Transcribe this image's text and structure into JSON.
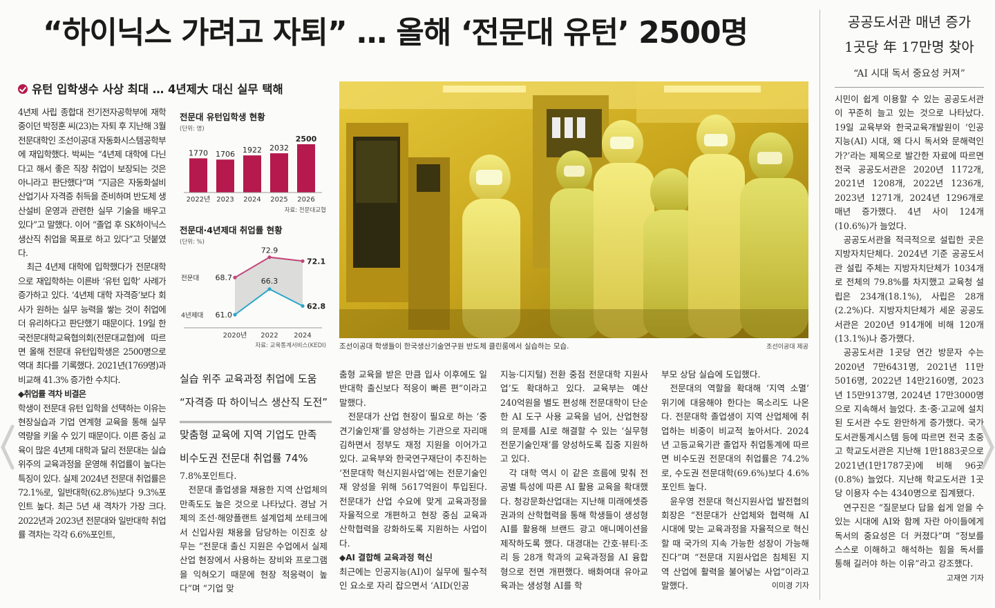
{
  "headline": "“하이닉스 가려고 자퇴” … 올해 ‘전문대 유턴’ 2500명",
  "subhead": "유턴 입학생수 사상 최대 … 4년제大 대신 실무 택해",
  "col_left": [
    "4년제 사립 종합대 전기전자공학부에 재학 중이던 박정훈 씨(23)는 자퇴 후 지난해 3월 전문대학인 조선이공대 자동화시스템공학부에 재입학했다. 박씨는 “4년제 대학에 다닌다고 해서 좋은 직장 취업이 보장되는 것은 아니라고 판단했다”며 “지금은 자동화설비 산업기사 자격증 취득을 준비하며 반도체 생산설비 운영과 관련한 실무 기술을 배우고 있다”고 말했다. 이어 “졸업 후 SK하이닉스 생산직 취업을 목표로 하고 있다”고 덧붙였다.",
    "최근 4년제 대학에 입학했다가 전문대학으로 재입학하는 이른바 ‘유턴 입학’ 사례가 증가하고 있다. ‘4년제 대학 자격증’보다 회사가 원하는 실무 능력을 쌓는 것이 취업에 더 유리하다고 판단했기 때문이다. 19일 한국전문대학교육협의회(전문대교협)에 따르면 올해 전문대 유턴입학생은 2500명으로 역대 최다를 기록했다. 2021년(1769명)과 비교해 41.3% 증가한 수치다.",
    "◆취업률 격차 비결은",
    "학생이 전문대 유턴 입학을 선택하는 이유는 현장실습과 기업 연계형 교육을 통해 실무 역량을 키울 수 있기 때문이다. 이른 중심 교육이 많은 4년제 대학과 달리 전문대는 실습 위주의 교육과정을 운영해 취업률이 높다는 특징이 있다. 실제 2024년 전문대 취업률은 72.1%로, 일반대학(62.8%)보다 9.3%포인트 높다. 최근 5년 새 격차가 가장 크다. 2022년과 2023년 전문대와 일반대학 취업률 격차는 각각 6.6%포인트,"
  ],
  "chart1": {
    "title": "전문대 유턴입학생 현황",
    "unit": "(단위: 명)",
    "source": "자료: 전문대교협"
  },
  "chart2": {
    "title": "전문대·4년제대 취업률 현황",
    "unit": "(단위: %)",
    "source": "자료: 교육통계서비스(KEDI)"
  },
  "chart_data": [
    {
      "type": "bar",
      "title": "전문대 유턴입학생 현황",
      "unit": "(단위: 명)",
      "categories": [
        "2022년",
        "2023",
        "2024",
        "2025",
        "2026"
      ],
      "values": [
        1770,
        1706,
        1922,
        2032,
        2500
      ],
      "highlight": "2026",
      "colors": {
        "bar": "#b5194e"
      },
      "source": "자료: 전문대교협"
    },
    {
      "type": "line",
      "title": "전문대·4년제대 취업률 현황",
      "unit": "(단위: %)",
      "x": [
        "2020년",
        "2022",
        "2024"
      ],
      "series": [
        {
          "name": "전문대",
          "values": [
            68.7,
            72.9,
            72.1
          ],
          "color": "#c2467a"
        },
        {
          "name": "4년제대",
          "values": [
            61.0,
            66.3,
            62.8
          ],
          "color": "#2aa6c9"
        }
      ],
      "fill_between": "#d6d6d6",
      "source": "자료: 교육통계서비스(KEDI)"
    }
  ],
  "pull_quotes": [
    "실습 위주 교육과정 취업에 도움",
    "“자격증 따 하이닉스 생산직 도전”",
    "맞춤형 교육에 지역 기업도 만족",
    "비수도권 전문대 취업률 74%"
  ],
  "photo_caption": "조선이공대 학생들이 한국생산기술연구원 반도체 클린룸에서 실습하는 모습.",
  "photo_credit": "조선이공대 제공",
  "col_a": [
    "7.8%포인트다.",
    "전문대 졸업생을 채용한 지역 산업체의 만족도도 높은 것으로 나타났다. 경남 거제의 조선·해양플랜트 설계업체 쏘테크에서 신입사원 채용을 담당하는 이진호 상무는 “전문대 출신 지원은 수업에서 실제 산업 현장에서 사용하는 장비와 프로그램을 익혀오기 때문에 현장 적응력이 높다”며 “기업 맞"
  ],
  "col_b": [
    "춤형 교육을 받은 만큼 입사 이후에도 일반대학 출신보다 적응이 빠른 편”이라고 말했다.",
    "전문대가 산업 현장이 필요로 하는 ‘중견기술인재’를 양성하는 기관으로 자리매김하면서 정부도 재정 지원을 이어가고 있다. 교육부와 한국연구재단이 추진하는 ‘전문대학 혁신지원사업’에는 전문기술인재 양성을 위해 5617억원이 투입된다. 전문대가 산업 수요에 맞게 교육과정을 자율적으로 개편하고 현장 중심 교육과 산학협력을 강화하도록 지원하는 사업이다.",
    "◆AI 결합해 교육과정 혁신",
    "최근에는 인공지능(AI)이 실무에 필수적인 요소로 자리 잡으면서 ‘AID(인공"
  ],
  "col_c": [
    "지능·디지털) 전환 중점 전문대학 지원사업’도 확대하고 있다. 교육부는 예산 240억원을 별도 편성해 전문대학이 단순한 AI 도구 사용 교육을 넘어, 산업현장의 문제를 AI로 해결할 수 있는 ‘실무형 전문기술인재’를 양성하도록 집중 지원하고 있다.",
    "각 대학 역시 이 같은 흐름에 맞춰 전공별 특성에 따른 AI 활용 교육을 확대했다. 청강문화산업대는 지난해 미래에셋증권과의 산학협력을 통해 학생들이 생성형 AI를 활용해 브랜드 광고 애니메이션을 제작하도록 했다. 대경대는 간호·뷰티·조리 등 28개 학과의 교육과정을 AI 융합형으로 전면 개편했다. 배화여대 유아교육과는 생성형 AI를 학"
  ],
  "col_d": [
    "부모 상담 실습에 도입했다.",
    "전문대의 역할을 확대해 ‘지역 소멸’ 위기에 대응해야 한다는 목소리도 나온다. 전문대학 졸업생이 지역 산업체에 취업하는 비중이 비교적 높아서다. 2024년 고등교육기관 졸업자 취업통계에 따르면 비수도권 전문대의 취업률은 74.2%로, 수도권 전문대학(69.6%)보다 4.6%포인트 높다.",
    "윤우영 전문대 혁신지원사업 발전협의회장은 “전문대가 산업체와 협력해 AI 시대에 맞는 교육과정을 자율적으로 혁신할 때 국가의 지속 가능한 성장이 가능해진다”며 “전문대 지원사업은 침체된 지역 산업에 활력을 불어넣는 사업”이라고 말했다."
  ],
  "byline_main": "이미경 기자",
  "side": {
    "headline_1": "공공도서관 매년 증가",
    "headline_2": "1곳당 年 17만명 찾아",
    "deck": "“AI 시대 독서 중요성 커져”",
    "body": [
      "시민이 쉽게 이용할 수 있는 공공도서관이 꾸준히 늘고 있는 것으로 나타났다. 19일 교육부와 한국교육개발원이 ‘인공지능(AI) 시대, 왜 다시 독서와 문해력인가?’라는 제목으로 발간한 자료에 따르면 전국 공공도서관은 2020년 1172개, 2021년 1208개, 2022년 1236개, 2023년 1271개, 2024년 1296개로 매년 증가했다. 4년 사이 124개(10.6%)가 늘었다.",
      "공공도서관을 적극적으로 설립한 곳은 지방자치단체다. 2024년 기준 공공도서관 설립 주체는 지방자치단체가 1034개로 전체의 79.8%를 차지했고 교육청 설립은 234개(18.1%), 사립은 28개(2.2%)다. 지방자치단체가 세운 공공도서관은 2020년 914개에 비해 120개(13.1%)나 증가했다.",
      "공공도서관 1곳당 연간 방문자 수는 2020년 7만6431명, 2021년 11만5016명, 2022년 14만2160명, 2023년 15만9137명, 2024년 17만3000명으로 지속해서 늘었다. 초·중·고교에 설치된 도서관 수도 완만하게 증가했다. 국가도서관통계시스템 등에 따르면 전국 초중고 학교도서관은 지난해 1만1883곳으로 2021년(1만1787곳)에 비해 96곳(0.8%) 늘었다. 지난해 학교도서관 1곳당 이용자 수는 4340명으로 집계됐다.",
      "연구진은 “질문보다 답을 쉽게 얻을 수 있는 시대에 AI와 함께 자란 아이들에게 독서의 중요성은 더 커졌다”며 “정보를 스스로 이해하고 해석하는 힘을 독서를 통해 길러야 하는 이유”라고 강조했다."
    ],
    "byline": "고재연 기자"
  }
}
